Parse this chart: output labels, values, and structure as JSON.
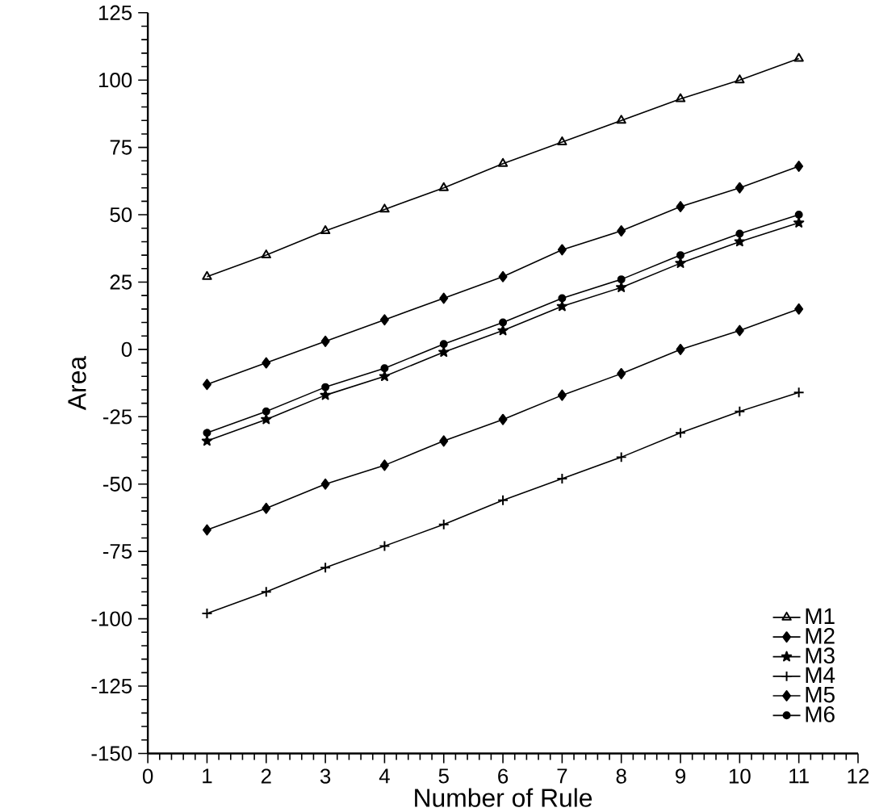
{
  "chart_data": {
    "type": "line",
    "xlabel": "Number of Rule",
    "ylabel": "Area",
    "x": [
      1,
      2,
      3,
      4,
      5,
      6,
      7,
      8,
      9,
      10,
      11
    ],
    "series": [
      {
        "name": "M1",
        "color": "#000000",
        "marker": "triangle",
        "values": [
          27,
          35,
          44,
          52,
          60,
          69,
          77,
          85,
          93,
          100,
          108
        ]
      },
      {
        "name": "M2",
        "color": "#000000",
        "marker": "diamond",
        "values": [
          -13,
          -5,
          3,
          11,
          19,
          27,
          37,
          44,
          53,
          60,
          68
        ]
      },
      {
        "name": "M3",
        "color": "#000000",
        "marker": "star",
        "values": [
          -34,
          -26,
          -17,
          -10,
          -1,
          7,
          16,
          23,
          32,
          40,
          47
        ]
      },
      {
        "name": "M4",
        "color": "#000000",
        "marker": "cross",
        "values": [
          -98,
          -90,
          -81,
          -73,
          -65,
          -56,
          -48,
          -40,
          -31,
          -23,
          -16
        ]
      },
      {
        "name": "M5",
        "color": "#000000",
        "marker": "diamond",
        "values": [
          -67,
          -59,
          -50,
          -43,
          -34,
          -26,
          -17,
          -9,
          0,
          7,
          15
        ]
      },
      {
        "name": "M6",
        "color": "#000000",
        "marker": "circle",
        "values": [
          -31,
          -23,
          -14,
          -7,
          2,
          10,
          19,
          26,
          35,
          43,
          50
        ]
      }
    ],
    "xlim": [
      0,
      12
    ],
    "ylim": [
      -150,
      125
    ],
    "xticks": [
      0,
      1,
      2,
      3,
      4,
      5,
      6,
      7,
      8,
      9,
      10,
      11,
      12
    ],
    "yticks": [
      -150,
      -125,
      -100,
      -75,
      -50,
      -25,
      0,
      25,
      50,
      75,
      100,
      125
    ],
    "legend": "bottom right",
    "grid": false,
    "line_style": "solid"
  }
}
